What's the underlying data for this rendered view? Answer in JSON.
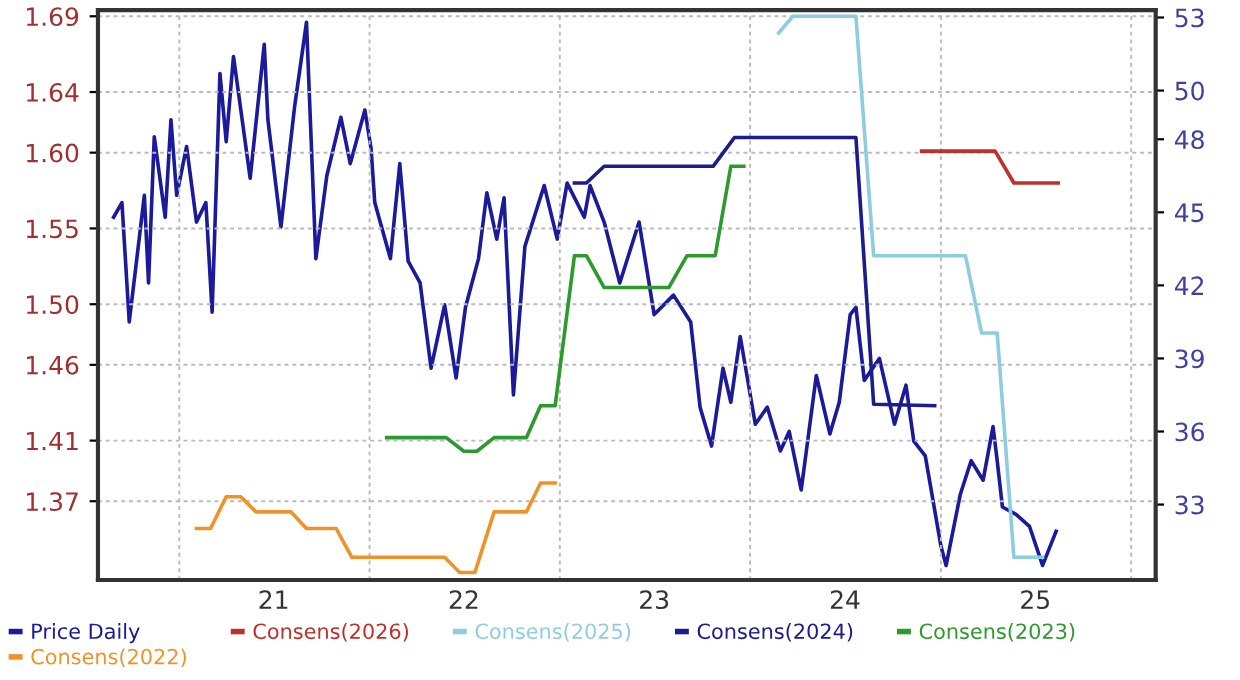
{
  "chart_data": {
    "type": "line",
    "legend": "bottom",
    "grid": true,
    "line_style": "solid",
    "marker": "none",
    "xlim": [
      "2020-07-29",
      "2026-02-17"
    ],
    "xticks": [
      {
        "value": "2021-01-01",
        "label": null
      },
      {
        "value": "2021-07-01",
        "label": "21"
      },
      {
        "value": "2022-01-01",
        "label": null
      },
      {
        "value": "2022-07-01",
        "label": "22"
      },
      {
        "value": "2023-01-01",
        "label": null
      },
      {
        "value": "2023-07-01",
        "label": "23"
      },
      {
        "value": "2024-01-01",
        "label": null
      },
      {
        "value": "2024-07-01",
        "label": "24"
      },
      {
        "value": "2025-01-01",
        "label": null
      },
      {
        "value": "2025-07-01",
        "label": "25"
      },
      {
        "value": "2026-01-01",
        "label": null
      }
    ],
    "ylim": [
      1.318,
      1.694
    ],
    "yticks": [
      1.37,
      1.41,
      1.46,
      {
        "value": 1.5,
        "label": "1.50"
      },
      1.55,
      {
        "value": 1.6,
        "label": "1.60"
      },
      1.64,
      1.69
    ],
    "y2lim": [
      29.9,
      53.3
    ],
    "y2ticks": [
      33,
      36,
      39,
      42,
      45,
      48,
      50,
      53
    ],
    "series": [
      {
        "name": "Price Daily",
        "color": "#1a1a9a",
        "axis": "y2",
        "x": [
          "2020-08-28",
          "2020-09-13",
          "2020-09-27",
          "2020-10-11",
          "2020-10-26",
          "2020-11-03",
          "2020-11-14",
          "2020-12-05",
          "2020-12-16",
          "2020-12-27",
          "2021-01-15",
          "2021-02-03",
          "2021-02-21",
          "2021-03-05",
          "2021-03-20",
          "2021-04-01",
          "2021-04-15",
          "2021-05-17",
          "2021-06-13",
          "2021-06-20",
          "2021-07-15",
          "2021-08-10",
          "2021-09-02",
          "2021-09-20",
          "2021-10-11",
          "2021-11-07",
          "2021-11-25",
          "2021-12-23",
          "2022-01-04",
          "2022-01-11",
          "2022-02-10",
          "2022-02-28",
          "2022-03-16",
          "2022-04-08",
          "2022-04-29",
          "2022-05-25",
          "2022-06-16",
          "2022-07-04",
          "2022-07-29",
          "2022-08-14",
          "2022-09-02",
          "2022-09-16",
          "2022-10-04",
          "2022-10-26",
          "2022-12-02",
          "2022-12-27",
          "2023-01-15",
          "2023-02-17",
          "2023-02-28",
          "2023-03-27",
          "2023-04-26",
          "2023-06-02",
          "2023-07-01",
          "2023-08-07",
          "2023-09-09",
          "2023-09-27",
          "2023-10-19",
          "2023-11-10",
          "2023-11-25",
          "2023-12-13",
          "2024-01-11",
          "2024-02-03",
          "2024-02-28",
          "2024-03-16",
          "2024-04-08",
          "2024-05-07",
          "2024-06-02",
          "2024-06-20",
          "2024-07-11",
          "2024-07-22",
          "2024-08-07",
          "2024-09-05",
          "2024-10-04",
          "2024-10-26",
          "2024-11-10",
          "2024-12-02",
          "2025-01-01",
          "2025-01-11",
          "2025-02-07",
          "2025-02-28",
          "2025-03-23",
          "2025-04-11",
          "2025-04-19",
          "2025-04-29",
          "2025-05-25",
          "2025-06-20",
          "2025-07-15",
          "2025-08-10"
        ],
        "values": [
          44.8,
          45.4,
          40.5,
          43.0,
          45.7,
          42.1,
          48.1,
          44.8,
          48.8,
          45.7,
          47.7,
          44.6,
          45.4,
          40.9,
          50.7,
          47.9,
          51.4,
          46.4,
          51.9,
          48.8,
          44.4,
          49.3,
          52.8,
          43.1,
          46.5,
          48.9,
          47.0,
          49.2,
          47.6,
          45.4,
          43.1,
          47.0,
          43.0,
          42.1,
          38.6,
          41.2,
          38.2,
          41.1,
          43.1,
          45.8,
          43.9,
          45.6,
          37.5,
          43.6,
          46.1,
          43.9,
          46.2,
          44.8,
          46.1,
          44.6,
          42.1,
          44.6,
          40.8,
          41.6,
          40.5,
          37.0,
          35.4,
          38.6,
          37.2,
          39.9,
          36.3,
          37.0,
          35.2,
          36.0,
          33.6,
          38.3,
          35.9,
          37.2,
          40.8,
          41.1,
          38.1,
          39.0,
          36.3,
          37.9,
          35.6,
          35.0,
          31.3,
          30.5,
          33.4,
          34.8,
          34.0,
          36.2,
          34.8,
          32.9,
          32.6,
          32.1,
          30.5,
          31.9
        ]
      },
      {
        "name": "Consens(2026)",
        "color": "#c0302a",
        "x": [
          "2024-11-25",
          "2025-04-15",
          "2025-05-21",
          "2025-08-14"
        ],
        "values": [
          1.601,
          1.601,
          1.58,
          1.58
        ]
      },
      {
        "name": "Consens(2025)",
        "color": "#8ecde0",
        "x": [
          "2024-02-25",
          "2024-03-23",
          "2024-07-22",
          "2024-08-25",
          "2025-02-17",
          "2025-03-20",
          "2025-04-19",
          "2025-05-21",
          "2025-07-15"
        ],
        "values": [
          1.679,
          1.69,
          1.69,
          1.532,
          1.532,
          1.481,
          1.481,
          1.333,
          1.333
        ]
      },
      {
        "name": "Consens(2024)",
        "color": "#1c1c8c",
        "x": [
          "2023-01-29",
          "2023-02-21",
          "2023-03-27",
          "2023-10-22",
          "2023-12-02",
          "2024-07-22",
          "2024-08-25",
          "2024-12-20"
        ],
        "values": [
          1.58,
          1.58,
          1.591,
          1.591,
          1.61,
          1.61,
          1.434,
          1.433
        ]
      },
      {
        "name": "Consens(2023)",
        "color": "#2e9a2e",
        "x": [
          "2022-02-03",
          "2022-05-28",
          "2022-07-01",
          "2022-07-26",
          "2022-08-28",
          "2022-10-29",
          "2022-11-25",
          "2022-12-23",
          "2023-01-29",
          "2023-02-21",
          "2023-03-27",
          "2023-07-29",
          "2023-09-02",
          "2023-10-26",
          "2023-11-25",
          "2023-12-20"
        ],
        "values": [
          1.412,
          1.412,
          1.403,
          1.403,
          1.412,
          1.412,
          1.433,
          1.433,
          1.532,
          1.532,
          1.511,
          1.511,
          1.532,
          1.532,
          1.591,
          1.591
        ]
      },
      {
        "name": "Consens(2022)",
        "color": "#f0922a",
        "x": [
          "2021-02-03",
          "2021-03-02",
          "2021-04-01",
          "2021-04-29",
          "2021-05-28",
          "2021-08-03",
          "2021-09-02",
          "2021-10-29",
          "2021-11-28",
          "2022-05-25",
          "2022-06-23",
          "2022-07-22",
          "2022-08-28",
          "2022-10-29",
          "2022-11-25",
          "2022-12-23"
        ],
        "values": [
          1.352,
          1.352,
          1.373,
          1.373,
          1.363,
          1.363,
          1.352,
          1.352,
          1.333,
          1.333,
          1.323,
          1.323,
          1.363,
          1.363,
          1.382,
          1.382
        ]
      }
    ]
  }
}
